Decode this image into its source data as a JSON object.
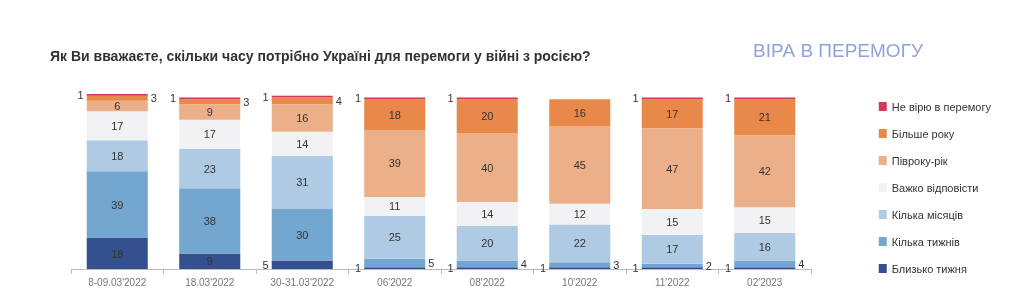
{
  "chart_data": {
    "type": "bar",
    "title": "Як Ви вважаєте, скільки часу потрібно Україні для перемоги у війні з росією?",
    "subtitle": "ВІРА В ПЕРЕМОГУ",
    "categories": [
      "8-09.03'2022",
      "18.03'2022",
      "30-31.03'2022",
      "06'2022",
      "08'2022",
      "10'2022",
      "11'2022",
      "02'2023"
    ],
    "stacked": true,
    "data_labels": true,
    "legend": "right",
    "series": [
      {
        "name": "Близько тижня",
        "color": "#34508f",
        "values": [
          18,
          9,
          5,
          1,
          1,
          1,
          1,
          1
        ]
      },
      {
        "name": "Кілька тижнів",
        "color": "#74a7cf",
        "values": [
          39,
          38,
          30,
          5,
          4,
          3,
          2,
          4
        ]
      },
      {
        "name": "Кілька місяців",
        "color": "#afcbe3",
        "values": [
          18,
          23,
          31,
          25,
          20,
          22,
          17,
          16
        ]
      },
      {
        "name": "Важко відповісти",
        "color": "#f2f2f4",
        "values": [
          17,
          17,
          14,
          11,
          14,
          12,
          15,
          15
        ]
      },
      {
        "name": "Півроку-рік",
        "color": "#ebb08a",
        "values": [
          6,
          9,
          16,
          39,
          40,
          45,
          47,
          42
        ]
      },
      {
        "name": "Більше року",
        "color": "#e8894a",
        "values": [
          3,
          3,
          4,
          18,
          20,
          16,
          17,
          21
        ]
      },
      {
        "name": "Не вірю в перемогу",
        "color": "#d6365a",
        "values": [
          1,
          1,
          1,
          1,
          1,
          null,
          1,
          1
        ]
      }
    ]
  }
}
